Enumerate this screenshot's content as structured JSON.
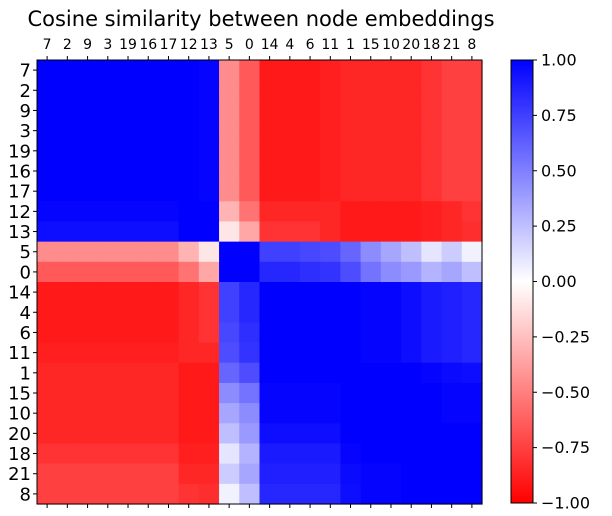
{
  "chart_data": {
    "type": "heatmap",
    "title": "Cosine similarity between node embeddings",
    "labels": [
      "7",
      "2",
      "9",
      "3",
      "19",
      "16",
      "17",
      "12",
      "13",
      "5",
      "0",
      "14",
      "4",
      "6",
      "11",
      "1",
      "15",
      "10",
      "20",
      "18",
      "21",
      "8"
    ],
    "values": [
      [
        1,
        1,
        1,
        1,
        1,
        1,
        1,
        1,
        0.98,
        -0.45,
        -0.65,
        -0.9,
        -0.9,
        -0.9,
        -0.88,
        -0.85,
        -0.85,
        -0.85,
        -0.85,
        -0.8,
        -0.75,
        -0.75
      ],
      [
        1,
        1,
        1,
        1,
        1,
        1,
        1,
        1,
        0.98,
        -0.45,
        -0.65,
        -0.9,
        -0.9,
        -0.9,
        -0.88,
        -0.85,
        -0.85,
        -0.85,
        -0.85,
        -0.8,
        -0.75,
        -0.75
      ],
      [
        1,
        1,
        1,
        1,
        1,
        1,
        1,
        1,
        0.98,
        -0.45,
        -0.65,
        -0.9,
        -0.9,
        -0.9,
        -0.88,
        -0.85,
        -0.85,
        -0.85,
        -0.85,
        -0.8,
        -0.75,
        -0.75
      ],
      [
        1,
        1,
        1,
        1,
        1,
        1,
        1,
        1,
        0.98,
        -0.45,
        -0.65,
        -0.9,
        -0.9,
        -0.9,
        -0.88,
        -0.85,
        -0.85,
        -0.85,
        -0.85,
        -0.8,
        -0.75,
        -0.75
      ],
      [
        1,
        1,
        1,
        1,
        1,
        1,
        1,
        1,
        0.98,
        -0.45,
        -0.65,
        -0.9,
        -0.9,
        -0.9,
        -0.88,
        -0.85,
        -0.85,
        -0.85,
        -0.85,
        -0.8,
        -0.75,
        -0.75
      ],
      [
        1,
        1,
        1,
        1,
        1,
        1,
        1,
        1,
        0.98,
        -0.45,
        -0.65,
        -0.9,
        -0.9,
        -0.9,
        -0.88,
        -0.85,
        -0.85,
        -0.85,
        -0.85,
        -0.8,
        -0.75,
        -0.75
      ],
      [
        1,
        1,
        1,
        1,
        1,
        1,
        1,
        1,
        0.98,
        -0.45,
        -0.65,
        -0.9,
        -0.9,
        -0.9,
        -0.88,
        -0.85,
        -0.85,
        -0.85,
        -0.85,
        -0.8,
        -0.75,
        -0.75
      ],
      [
        0.98,
        0.98,
        0.98,
        0.98,
        0.98,
        0.98,
        0.98,
        1,
        1,
        -0.3,
        -0.55,
        -0.85,
        -0.85,
        -0.85,
        -0.85,
        -0.9,
        -0.9,
        -0.9,
        -0.9,
        -0.88,
        -0.85,
        -0.8
      ],
      [
        0.95,
        0.95,
        0.95,
        0.95,
        0.95,
        0.95,
        0.95,
        1,
        1,
        -0.1,
        -0.35,
        -0.8,
        -0.8,
        -0.8,
        -0.85,
        -0.9,
        -0.9,
        -0.9,
        -0.9,
        -0.88,
        -0.85,
        -0.82
      ],
      [
        -0.45,
        -0.45,
        -0.45,
        -0.45,
        -0.45,
        -0.45,
        -0.45,
        -0.3,
        -0.1,
        1,
        1,
        0.75,
        0.75,
        0.72,
        0.7,
        0.6,
        0.45,
        0.35,
        0.25,
        0.1,
        0.2,
        0.05
      ],
      [
        -0.65,
        -0.65,
        -0.65,
        -0.65,
        -0.65,
        -0.65,
        -0.65,
        -0.55,
        -0.35,
        1,
        1,
        0.85,
        0.85,
        0.82,
        0.8,
        0.7,
        0.55,
        0.45,
        0.4,
        0.3,
        0.35,
        0.25
      ],
      [
        -0.9,
        -0.9,
        -0.9,
        -0.9,
        -0.9,
        -0.9,
        -0.9,
        -0.85,
        -0.8,
        0.75,
        0.85,
        1,
        1,
        1,
        1,
        1,
        0.98,
        0.98,
        0.95,
        0.9,
        0.88,
        0.85
      ],
      [
        -0.9,
        -0.9,
        -0.9,
        -0.9,
        -0.9,
        -0.9,
        -0.9,
        -0.85,
        -0.8,
        0.75,
        0.85,
        1,
        1,
        1,
        1,
        1,
        0.98,
        0.98,
        0.95,
        0.9,
        0.88,
        0.85
      ],
      [
        -0.9,
        -0.9,
        -0.9,
        -0.9,
        -0.9,
        -0.9,
        -0.9,
        -0.85,
        -0.8,
        0.72,
        0.82,
        1,
        1,
        1,
        1,
        1,
        0.98,
        0.98,
        0.95,
        0.9,
        0.88,
        0.85
      ],
      [
        -0.88,
        -0.88,
        -0.88,
        -0.88,
        -0.88,
        -0.88,
        -0.88,
        -0.85,
        -0.85,
        0.7,
        0.8,
        1,
        1,
        1,
        1,
        1,
        0.98,
        0.98,
        0.95,
        0.9,
        0.88,
        0.85
      ],
      [
        -0.85,
        -0.85,
        -0.85,
        -0.85,
        -0.85,
        -0.85,
        -0.85,
        -0.9,
        -0.9,
        0.6,
        0.7,
        1,
        1,
        1,
        1,
        1,
        1,
        1,
        1,
        0.98,
        0.96,
        0.95
      ],
      [
        -0.85,
        -0.85,
        -0.85,
        -0.85,
        -0.85,
        -0.85,
        -0.85,
        -0.9,
        -0.9,
        0.45,
        0.55,
        0.98,
        0.98,
        0.98,
        0.98,
        1,
        1,
        1,
        1,
        1,
        0.98,
        0.98
      ],
      [
        -0.85,
        -0.85,
        -0.85,
        -0.85,
        -0.85,
        -0.85,
        -0.85,
        -0.9,
        -0.9,
        0.35,
        0.45,
        0.98,
        0.98,
        0.98,
        0.98,
        1,
        1,
        1,
        1,
        1,
        0.98,
        0.98
      ],
      [
        -0.85,
        -0.85,
        -0.85,
        -0.85,
        -0.85,
        -0.85,
        -0.85,
        -0.9,
        -0.9,
        0.25,
        0.4,
        0.95,
        0.95,
        0.95,
        0.95,
        1,
        1,
        1,
        1,
        1,
        1,
        1
      ],
      [
        -0.8,
        -0.8,
        -0.8,
        -0.8,
        -0.8,
        -0.8,
        -0.8,
        -0.88,
        -0.88,
        0.1,
        0.3,
        0.9,
        0.9,
        0.9,
        0.9,
        0.98,
        1,
        1,
        1,
        1,
        1,
        1
      ],
      [
        -0.75,
        -0.75,
        -0.75,
        -0.75,
        -0.75,
        -0.75,
        -0.75,
        -0.85,
        -0.85,
        0.2,
        0.35,
        0.88,
        0.88,
        0.88,
        0.88,
        0.96,
        0.98,
        0.98,
        1,
        1,
        1,
        1
      ],
      [
        -0.75,
        -0.75,
        -0.75,
        -0.75,
        -0.75,
        -0.75,
        -0.75,
        -0.8,
        -0.82,
        0.05,
        0.25,
        0.85,
        0.85,
        0.85,
        0.85,
        0.95,
        0.98,
        0.98,
        1,
        1,
        1,
        1
      ]
    ],
    "colormap": "bwr_r",
    "vmin": -1,
    "vmax": 1,
    "colorbar_ticks": [
      "1.00",
      "0.75",
      "0.50",
      "0.25",
      "0.00",
      "−0.25",
      "−0.50",
      "−0.75",
      "−1.00"
    ],
    "colors": {
      "positive": "#0000ff",
      "zero": "#ffffff",
      "negative": "#ff0000"
    }
  }
}
